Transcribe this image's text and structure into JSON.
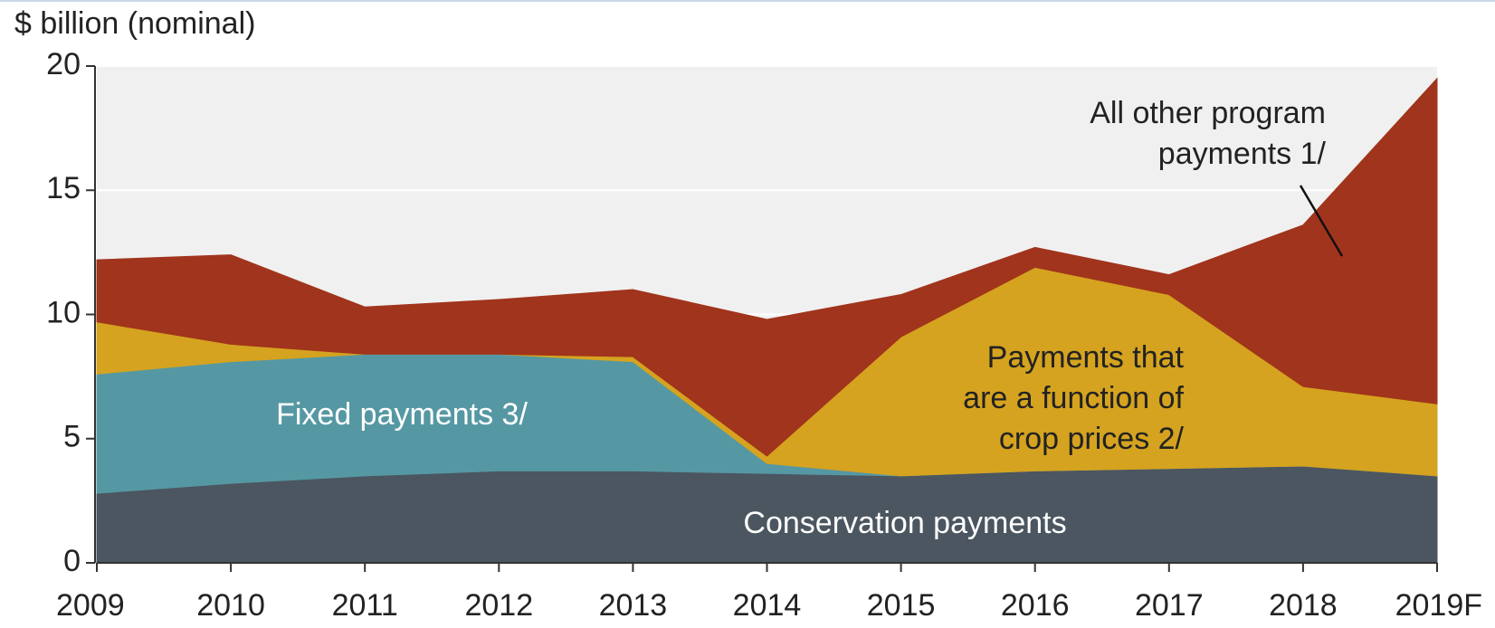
{
  "chart_data": {
    "type": "stacked-area",
    "y_label": "$ billion (nominal)",
    "categories": [
      "2009",
      "2010",
      "2011",
      "2012",
      "2013",
      "2014",
      "2015",
      "2016",
      "2017",
      "2018",
      "2019F"
    ],
    "series": [
      {
        "name": "Conservation payments",
        "color": "#4b5660",
        "label_color": "#ffffff",
        "values": [
          2.8,
          3.2,
          3.5,
          3.7,
          3.7,
          3.6,
          3.5,
          3.7,
          3.8,
          3.9,
          3.5
        ]
      },
      {
        "name": "Fixed payments 3/",
        "color": "#5598a3",
        "label_color": "#ffffff",
        "values": [
          4.8,
          4.9,
          4.9,
          4.7,
          4.4,
          0.4,
          0,
          0,
          0,
          0,
          0
        ]
      },
      {
        "name": "Payments that are a function of crop prices 2/",
        "color": "#d5a31f",
        "label_color": "#222222",
        "values": [
          2.1,
          0.7,
          0,
          0,
          0.2,
          0.3,
          5.6,
          8.2,
          7.0,
          3.2,
          2.9
        ]
      },
      {
        "name": "All other program payments 1/",
        "color": "#a1341c",
        "label_color": "#222222",
        "values": [
          2.5,
          3.6,
          1.9,
          2.2,
          2.7,
          5.5,
          1.7,
          0.8,
          0.8,
          6.5,
          13.1
        ]
      }
    ],
    "annotations": [
      {
        "lines": [
          "Conservation payments"
        ]
      },
      {
        "lines": [
          "Fixed payments 3/"
        ]
      },
      {
        "lines": [
          "Payments that",
          "are a function of",
          "crop prices 2/"
        ]
      },
      {
        "lines": [
          "All other program",
          "payments 1/"
        ]
      }
    ],
    "ylim": [
      0,
      20
    ],
    "yticks": [
      0,
      5,
      10,
      15,
      20
    ],
    "grid": true,
    "plot_background": "#f0f0f0"
  }
}
